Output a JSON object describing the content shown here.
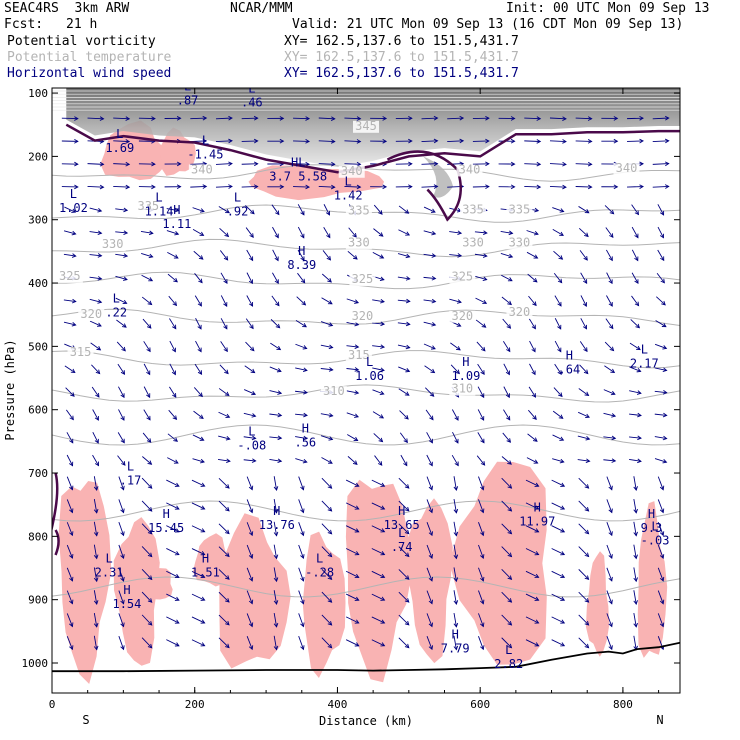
{
  "header": {
    "experiment": "SEAC4RS  3km ARW",
    "center": "NCAR/MMM",
    "init": "Init: 00 UTC Mon 09 Sep 13",
    "fcst_label": "Fcst:",
    "fcst_value": "21 h",
    "valid": "Valid: 21 UTC Mon 09 Sep 13 (16 CDT Mon 09 Sep 13)",
    "fields": [
      {
        "name": "Potential vorticity",
        "xy": "XY= 162.5,137.6 to 151.5,431.7",
        "color": "#000000"
      },
      {
        "name": "Potential temperature",
        "xy": "XY= 162.5,137.6 to 151.5,431.7",
        "color": "#b4b4b4"
      },
      {
        "name": "Horizontal wind speed",
        "xy": "XY= 162.5,137.6 to 151.5,431.7",
        "color": "#000080"
      }
    ]
  },
  "chart_data": {
    "type": "vertical-cross-section",
    "xlabel": "Distance (km)",
    "ylabel": "Pressure (hPa)",
    "xlim": [
      0,
      880
    ],
    "ylim": [
      1000,
      100
    ],
    "x_ticks": [
      0,
      200,
      400,
      600,
      800
    ],
    "y_ticks": [
      100,
      200,
      300,
      400,
      500,
      600,
      700,
      800,
      900,
      1000
    ],
    "x_endpoints": {
      "left": "S",
      "right": "N"
    },
    "colors": {
      "theta": "#b4b4b4",
      "pv_contour": "#4a0a4a",
      "speed_shading": "#f9b3b3",
      "wind_vectors": "#000080",
      "terrain": "#000000",
      "stratosphere_gray": "#7a7a7a"
    },
    "theta_contours": [
      {
        "value": 340,
        "pressure": 225
      },
      {
        "value": 335,
        "pressure": 290
      },
      {
        "value": 330,
        "pressure": 345
      },
      {
        "value": 325,
        "pressure": 397
      },
      {
        "value": 320,
        "pressure": 455
      },
      {
        "value": 315,
        "pressure": 520
      },
      {
        "value": 310,
        "pressure": 575
      }
    ],
    "theta_labels": [
      {
        "text": "345",
        "x": 440,
        "p": 158
      },
      {
        "text": "340",
        "x": 210,
        "p": 227
      },
      {
        "text": "340",
        "x": 420,
        "p": 229
      },
      {
        "text": "340",
        "x": 585,
        "p": 227
      },
      {
        "text": "340",
        "x": 805,
        "p": 225
      },
      {
        "text": "335",
        "x": 135,
        "p": 285
      },
      {
        "text": "335",
        "x": 430,
        "p": 292
      },
      {
        "text": "335",
        "x": 590,
        "p": 290
      },
      {
        "text": "335",
        "x": 655,
        "p": 290
      },
      {
        "text": "330",
        "x": 85,
        "p": 345
      },
      {
        "text": "330",
        "x": 430,
        "p": 342
      },
      {
        "text": "330",
        "x": 590,
        "p": 342
      },
      {
        "text": "330",
        "x": 655,
        "p": 342
      },
      {
        "text": "325",
        "x": 25,
        "p": 395
      },
      {
        "text": "325",
        "x": 435,
        "p": 400
      },
      {
        "text": "325",
        "x": 575,
        "p": 396
      },
      {
        "text": "320",
        "x": 55,
        "p": 455
      },
      {
        "text": "320",
        "x": 435,
        "p": 458
      },
      {
        "text": "320",
        "x": 575,
        "p": 458
      },
      {
        "text": "320",
        "x": 655,
        "p": 452
      },
      {
        "text": "315",
        "x": 40,
        "p": 515
      },
      {
        "text": "315",
        "x": 430,
        "p": 520
      },
      {
        "text": "310",
        "x": 395,
        "p": 577
      },
      {
        "text": "310",
        "x": 575,
        "p": 573
      }
    ],
    "extrema_labels": [
      {
        "kind": "L",
        "value": ".87",
        "x": 190,
        "p": 115
      },
      {
        "kind": "L",
        "value": ".46",
        "x": 280,
        "p": 118
      },
      {
        "kind": "L",
        "value": "1.69",
        "x": 95,
        "p": 190
      },
      {
        "kind": "L",
        "value": "-1.45",
        "x": 215,
        "p": 200
      },
      {
        "kind": "HL",
        "value": "3.7 5.58",
        "x": 345,
        "p": 235
      },
      {
        "kind": "L",
        "value": "1.02",
        "x": 30,
        "p": 285
      },
      {
        "kind": "L",
        "value": "1.14",
        "x": 150,
        "p": 290
      },
      {
        "kind": "H",
        "value": "1.11",
        "x": 175,
        "p": 310
      },
      {
        "kind": "L",
        "value": ".92",
        "x": 260,
        "p": 290
      },
      {
        "kind": "L",
        "value": "1.42",
        "x": 415,
        "p": 265
      },
      {
        "kind": "H",
        "value": "8.39",
        "x": 350,
        "p": 375
      },
      {
        "kind": "L",
        "value": ".22",
        "x": 90,
        "p": 450
      },
      {
        "kind": "L",
        "value": "1.06",
        "x": 445,
        "p": 550
      },
      {
        "kind": "H",
        "value": "1.09",
        "x": 580,
        "p": 550
      },
      {
        "kind": "H",
        "value": ".64",
        "x": 725,
        "p": 540
      },
      {
        "kind": "L",
        "value": "2.17",
        "x": 830,
        "p": 530
      },
      {
        "kind": "L",
        "value": "-.08",
        "x": 280,
        "p": 660
      },
      {
        "kind": "H",
        "value": ".56",
        "x": 355,
        "p": 655
      },
      {
        "kind": "L",
        "value": ".17",
        "x": 110,
        "p": 715
      },
      {
        "kind": "H",
        "value": "15.45",
        "x": 160,
        "p": 790
      },
      {
        "kind": "H",
        "value": "13.76",
        "x": 315,
        "p": 785
      },
      {
        "kind": "H",
        "value": "13.65",
        "x": 490,
        "p": 785
      },
      {
        "kind": "H",
        "value": "11.97",
        "x": 680,
        "p": 780
      },
      {
        "kind": "H",
        "value": "9.3",
        "x": 840,
        "p": 790
      },
      {
        "kind": "L",
        "value": "-.03",
        "x": 845,
        "p": 810
      },
      {
        "kind": "L",
        "value": "-.28",
        "x": 375,
        "p": 860
      },
      {
        "kind": "H",
        "value": "1.51",
        "x": 215,
        "p": 860
      },
      {
        "kind": "H",
        "value": "1.54",
        "x": 105,
        "p": 910
      },
      {
        "kind": "H",
        "value": "7.79",
        "x": 565,
        "p": 980
      },
      {
        "kind": "L",
        "value": "2.82",
        "x": 640,
        "p": 1005
      },
      {
        "kind": "L",
        "value": "2.31",
        "x": 80,
        "p": 860
      },
      {
        "kind": "L",
        "value": ".74",
        "x": 490,
        "p": 820
      }
    ],
    "terrain": {
      "x": [
        0,
        100,
        200,
        300,
        400,
        450,
        500,
        550,
        600,
        650,
        700,
        750,
        780,
        800,
        820,
        850,
        880
      ],
      "p": [
        1013,
        1013,
        1012,
        1011,
        1011,
        1012,
        1011,
        1010,
        1008,
        1006,
        995,
        985,
        982,
        985,
        978,
        975,
        968
      ]
    },
    "pv_tropopause": {
      "x": [
        20,
        60,
        100,
        150,
        200,
        250,
        300,
        350,
        400,
        450,
        500,
        550,
        600,
        650,
        700,
        750,
        800,
        850,
        880
      ],
      "p": [
        150,
        175,
        168,
        175,
        178,
        190,
        205,
        215,
        225,
        215,
        200,
        195,
        200,
        165,
        165,
        162,
        162,
        160,
        160
      ]
    },
    "speed_shading_regions": [
      {
        "x": [
          70,
          160
        ],
        "p": [
          150,
          240
        ]
      },
      {
        "x": [
          150,
          200
        ],
        "p": [
          160,
          230
        ]
      },
      {
        "x": [
          270,
          460
        ],
        "p": [
          215,
          265
        ]
      },
      {
        "x": [
          10,
          80
        ],
        "p": [
          700,
          1010
        ]
      },
      {
        "x": [
          90,
          150
        ],
        "p": [
          770,
          1000
        ]
      },
      {
        "x": [
          125,
          170
        ],
        "p": [
          850,
          900
        ]
      },
      {
        "x": [
          200,
          250
        ],
        "p": [
          800,
          880
        ]
      },
      {
        "x": [
          230,
          330
        ],
        "p": [
          780,
          1010
        ]
      },
      {
        "x": [
          350,
          410
        ],
        "p": [
          800,
          1010
        ]
      },
      {
        "x": [
          410,
          500
        ],
        "p": [
          700,
          1010
        ]
      },
      {
        "x": [
          500,
          560
        ],
        "p": [
          740,
          990
        ]
      },
      {
        "x": [
          570,
          700
        ],
        "p": [
          680,
          1005
        ]
      },
      {
        "x": [
          750,
          780
        ],
        "p": [
          830,
          990
        ]
      },
      {
        "x": [
          820,
          860
        ],
        "p": [
          760,
          1000
        ]
      }
    ]
  }
}
